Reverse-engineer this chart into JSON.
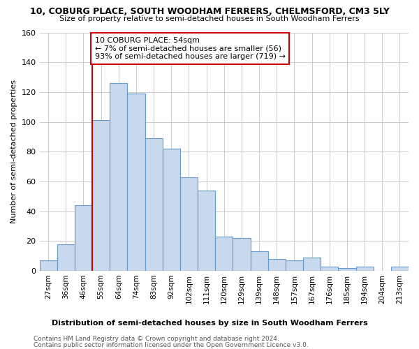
{
  "title": "10, COBURG PLACE, SOUTH WOODHAM FERRERS, CHELMSFORD, CM3 5LY",
  "subtitle": "Size of property relative to semi-detached houses in South Woodham Ferrers",
  "xlabel": "Distribution of semi-detached houses by size in South Woodham Ferrers",
  "ylabel": "Number of semi-detached properties",
  "footnote1": "Contains HM Land Registry data © Crown copyright and database right 2024.",
  "footnote2": "Contains public sector information licensed under the Open Government Licence v3.0.",
  "bins": [
    "27sqm",
    "36sqm",
    "46sqm",
    "55sqm",
    "64sqm",
    "74sqm",
    "83sqm",
    "92sqm",
    "102sqm",
    "111sqm",
    "120sqm",
    "129sqm",
    "139sqm",
    "148sqm",
    "157sqm",
    "167sqm",
    "176sqm",
    "185sqm",
    "194sqm",
    "204sqm",
    "213sqm"
  ],
  "values": [
    7,
    18,
    44,
    101,
    126,
    119,
    89,
    82,
    63,
    54,
    23,
    22,
    13,
    8,
    7,
    9,
    3,
    2,
    3,
    0,
    3
  ],
  "bar_color": "#c8d8ed",
  "bar_edge_color": "#6699cc",
  "vline_color": "#cc0000",
  "vline_bin_index": 3,
  "annotation_title": "10 COBURG PLACE: 54sqm",
  "annotation_line1": "← 7% of semi-detached houses are smaller (56)",
  "annotation_line2": "93% of semi-detached houses are larger (719) →",
  "annotation_box_color": "#cc0000",
  "ylim": [
    0,
    160
  ],
  "yticks": [
    0,
    20,
    40,
    60,
    80,
    100,
    120,
    140,
    160
  ],
  "bg_color": "#ffffff",
  "grid_color": "#cccccc"
}
